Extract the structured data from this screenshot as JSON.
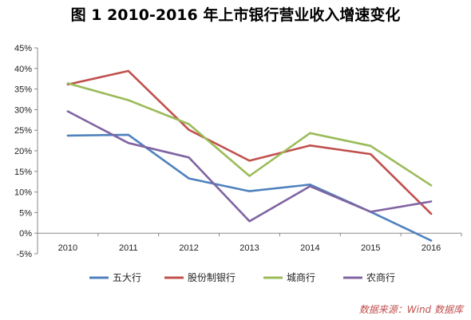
{
  "title": "图 1  2010-2016 年上市银行营业收入增速变化",
  "source": "数据来源：Wind 数据库",
  "chart_data": {
    "type": "line",
    "x": [
      "2010",
      "2011",
      "2012",
      "2013",
      "2014",
      "2015",
      "2016"
    ],
    "series": [
      {
        "name": "五大行",
        "color": "#4f81bd",
        "values": [
          23.7,
          23.9,
          13.3,
          10.2,
          11.8,
          5.2,
          -1.8
        ]
      },
      {
        "name": "股份制银行",
        "color": "#c0504d",
        "values": [
          36.1,
          39.4,
          25.1,
          17.6,
          21.3,
          19.2,
          4.7
        ]
      },
      {
        "name": "城商行",
        "color": "#9bbb59",
        "values": [
          36.4,
          32.3,
          26.5,
          13.9,
          24.3,
          21.2,
          11.6
        ]
      },
      {
        "name": "农商行",
        "color": "#8064a2",
        "values": [
          29.6,
          21.9,
          18.4,
          2.9,
          11.4,
          5.2,
          7.7
        ]
      }
    ],
    "yticks": [
      "45%",
      "40%",
      "35%",
      "30%",
      "25%",
      "20%",
      "15%",
      "10%",
      "5%",
      "0%",
      "-5%"
    ],
    "ylim": [
      -5,
      45
    ],
    "grid": false,
    "legend_position": "bottom"
  }
}
